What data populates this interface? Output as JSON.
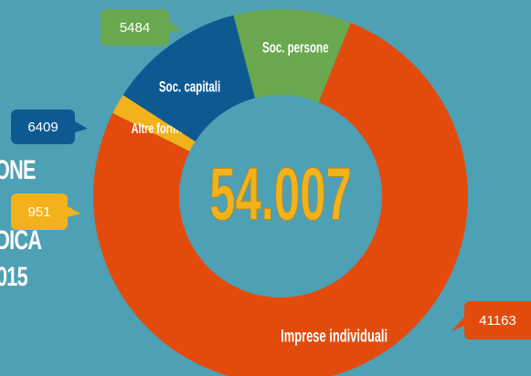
{
  "side_title": {
    "line1": "ONE",
    "line2": "IDICA",
    "line3": "015"
  },
  "chart_data": {
    "type": "pie",
    "variant": "donut",
    "total_label": "54.007",
    "slices": [
      {
        "label": "Imprese individuali",
        "value": 41163,
        "color": "#e34b0c"
      },
      {
        "label": "Altre forme",
        "value": 951,
        "color": "#f2b21b"
      },
      {
        "label": "Soc. capitali",
        "value": 6409,
        "color": "#0d5a93"
      },
      {
        "label": "Soc. persone",
        "value": 5484,
        "color": "#6aa84f"
      }
    ],
    "callouts": [
      {
        "value_text": "41163",
        "color": "#e34b0c",
        "text_color": "#ffffff"
      },
      {
        "value_text": "951",
        "color": "#f2b21b",
        "text_color": "#ffffff"
      },
      {
        "value_text": "6409",
        "color": "#0d5a93",
        "text_color": "#ffffff"
      },
      {
        "value_text": "5484",
        "color": "#6aa84f",
        "text_color": "#ffffff"
      }
    ],
    "colors": {
      "background": "#4ea0b5",
      "total_text": "#f2b21b"
    }
  }
}
